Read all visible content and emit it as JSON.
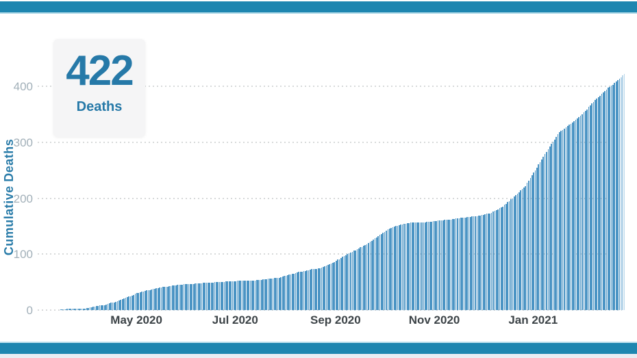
{
  "colors": {
    "accent_teal": "#1e86b0",
    "bottom_strip": "#e9edf3",
    "bar_fill": "#4b94c4",
    "bar_faded": "#b9d6ea",
    "grid": "#d7d9da",
    "ytick_text": "#a2b0b9",
    "xtick_text": "#3c4347",
    "stat_text": "#2679a8",
    "card_bg": "#f5f5f6",
    "page_bg": "#ffffff"
  },
  "stat_card": {
    "value": "422",
    "label": "Deaths"
  },
  "chart_data": {
    "type": "bar",
    "title": "",
    "subtitle": "",
    "ylabel": "Cumulative Deaths",
    "xlabel": "",
    "ylim": [
      0,
      440
    ],
    "yticks": [
      0,
      100,
      200,
      300,
      400
    ],
    "xticks": [
      {
        "label": "May 2020",
        "date": "2020-05-01"
      },
      {
        "label": "Jul 2020",
        "date": "2020-07-01"
      },
      {
        "label": "Sep 2020",
        "date": "2020-09-01"
      },
      {
        "label": "Nov 2020",
        "date": "2020-11-01"
      },
      {
        "label": "Jan 2021",
        "date": "2021-01-01"
      }
    ],
    "grid": "horizontal-dotted",
    "legend": "none",
    "bar_unit": "day",
    "start_date": "2020-03-15",
    "end_date": "2021-02-26",
    "final_value": 422,
    "faded_last_bars": 3,
    "series": [
      {
        "name": "Cumulative Deaths",
        "points": [
          [
            "2020-03-15",
            1
          ],
          [
            "2020-03-22",
            2
          ],
          [
            "2020-03-29",
            3
          ],
          [
            "2020-04-05",
            6
          ],
          [
            "2020-04-12",
            10
          ],
          [
            "2020-04-19",
            16
          ],
          [
            "2020-04-26",
            24
          ],
          [
            "2020-05-03",
            32
          ],
          [
            "2020-05-10",
            37
          ],
          [
            "2020-05-17",
            41
          ],
          [
            "2020-05-24",
            44
          ],
          [
            "2020-05-31",
            46
          ],
          [
            "2020-06-07",
            48
          ],
          [
            "2020-06-14",
            49
          ],
          [
            "2020-06-21",
            50
          ],
          [
            "2020-06-28",
            51
          ],
          [
            "2020-07-05",
            52
          ],
          [
            "2020-07-12",
            53
          ],
          [
            "2020-07-19",
            55
          ],
          [
            "2020-07-26",
            57
          ],
          [
            "2020-08-02",
            62
          ],
          [
            "2020-08-09",
            68
          ],
          [
            "2020-08-16",
            72
          ],
          [
            "2020-08-23",
            76
          ],
          [
            "2020-08-30",
            84
          ],
          [
            "2020-09-06",
            97
          ],
          [
            "2020-09-13",
            107
          ],
          [
            "2020-09-20",
            118
          ],
          [
            "2020-09-27",
            132
          ],
          [
            "2020-10-04",
            146
          ],
          [
            "2020-10-11",
            153
          ],
          [
            "2020-10-18",
            156
          ],
          [
            "2020-10-25",
            157
          ],
          [
            "2020-11-01",
            159
          ],
          [
            "2020-11-08",
            161
          ],
          [
            "2020-11-15",
            164
          ],
          [
            "2020-11-22",
            166
          ],
          [
            "2020-11-29",
            169
          ],
          [
            "2020-12-06",
            174
          ],
          [
            "2020-12-13",
            185
          ],
          [
            "2020-12-20",
            203
          ],
          [
            "2020-12-27",
            222
          ],
          [
            "2021-01-03",
            255
          ],
          [
            "2021-01-10",
            288
          ],
          [
            "2021-01-17",
            318
          ],
          [
            "2021-01-24",
            333
          ],
          [
            "2021-01-31",
            350
          ],
          [
            "2021-02-07",
            372
          ],
          [
            "2021-02-14",
            392
          ],
          [
            "2021-02-21",
            408
          ],
          [
            "2021-02-26",
            422
          ]
        ]
      }
    ]
  }
}
